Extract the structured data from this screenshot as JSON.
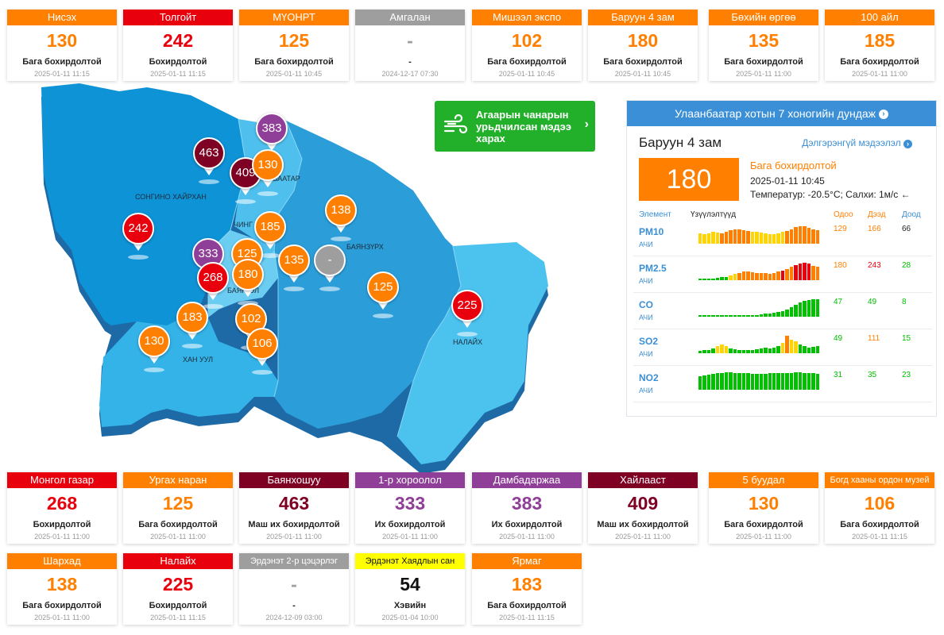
{
  "colors": {
    "good": "#00c000",
    "moderate": "#ffd400",
    "orange": "#ff7f00",
    "red": "#e8000c",
    "purple": "#8f3f97",
    "maroon": "#7e0023",
    "gray": "#9e9e9e",
    "yellow": "#ffff00"
  },
  "top_cards": [
    {
      "name": "Нисэх",
      "value": "130",
      "level": "Бага бохирдолтой",
      "time": "2025-01-11 11:15",
      "color": "#ff7f00"
    },
    {
      "name": "Толгойт",
      "value": "242",
      "level": "Бохирдолтой",
      "time": "2025-01-11 11:15",
      "color": "#e8000c"
    },
    {
      "name": "МҮОНРТ",
      "value": "125",
      "level": "Бага бохирдолтой",
      "time": "2025-01-11 10:45",
      "color": "#ff7f00"
    },
    {
      "name": "Амгалан",
      "value": "-",
      "level": "-",
      "time": "2024-12-17 07:30",
      "color": "#9e9e9e"
    },
    {
      "name": "Мишээл экспо",
      "value": "102",
      "level": "Бага бохирдолтой",
      "time": "2025-01-11 10:45",
      "color": "#ff7f00"
    },
    {
      "name": "Баруун 4 зам",
      "value": "180",
      "level": "Бага бохирдолтой",
      "time": "2025-01-11 10:45",
      "color": "#ff7f00"
    },
    {
      "name": "Бөхийн өргөө",
      "value": "135",
      "level": "Бага бохирдолтой",
      "time": "2025-01-11 11:00",
      "color": "#ff7f00"
    },
    {
      "name": "100 айл",
      "value": "185",
      "level": "Бага бохирдолтой",
      "time": "2025-01-11 11:00",
      "color": "#ff7f00"
    }
  ],
  "bottom_cards_row1": [
    {
      "name": "Монгол газар",
      "value": "268",
      "level": "Бохирдолтой",
      "time": "2025-01-11 11:00",
      "color": "#e8000c"
    },
    {
      "name": "Ургах наран",
      "value": "125",
      "level": "Бага бохирдолтой",
      "time": "2025-01-11 11:00",
      "color": "#ff7f00"
    },
    {
      "name": "Баянхошуу",
      "value": "463",
      "level": "Маш их бохирдолтой",
      "time": "2025-01-11 11:00",
      "color": "#7e0023"
    },
    {
      "name": "1-р хороолол",
      "value": "333",
      "level": "Их бохирдолтой",
      "time": "2025-01-11 11:00",
      "color": "#8f3f97"
    },
    {
      "name": "Дамбадаржаа",
      "value": "383",
      "level": "Их бохирдолтой",
      "time": "2025-01-11 11:00",
      "color": "#8f3f97"
    },
    {
      "name": "Хайлааст",
      "value": "409",
      "level": "Маш их бохирдолтой",
      "time": "2025-01-11 11:00",
      "color": "#7e0023"
    },
    {
      "name": "5 буудал",
      "value": "130",
      "level": "Бага бохирдолтой",
      "time": "2025-01-11 11:00",
      "color": "#ff7f00"
    },
    {
      "name": "Богд хааны ордон музей",
      "value": "106",
      "level": "Бага бохирдолтой",
      "time": "2025-01-11 11:15",
      "color": "#ff7f00"
    }
  ],
  "bottom_cards_row2": [
    {
      "name": "Шархад",
      "value": "138",
      "level": "Бага бохирдолтой",
      "time": "2025-01-11 11:00",
      "color": "#ff7f00"
    },
    {
      "name": "Налайх",
      "value": "225",
      "level": "Бохирдолтой",
      "time": "2025-01-11 11:15",
      "color": "#e8000c"
    },
    {
      "name": "Эрдэнэт 2-р цэцэрлэг",
      "value": "-",
      "level": "-",
      "time": "2024-12-09 03:00",
      "color": "#9e9e9e"
    },
    {
      "name": "Эрдэнэт Хаядлын сан",
      "value": "54",
      "level": "Хэвийн",
      "time": "2025-01-04 10:00",
      "color": "#ffff00"
    },
    {
      "name": "Ярмаг",
      "value": "183",
      "level": "Бага бохирдолтой",
      "time": "2025-01-11 11:15",
      "color": "#ff7f00"
    }
  ],
  "map": {
    "districts": [
      "СОНГИНО ХАЙРХАН",
      "ЧИНГ",
      "СБААТАР",
      "БАЯНЗҮРХ",
      "БАЯН ОЛ",
      "ХАН УУЛ",
      "НАЛАЙХ"
    ],
    "pins": [
      "383",
      "463",
      "409",
      "130",
      "242",
      "185",
      "138",
      "333",
      "125",
      "135",
      "-",
      "268",
      "180",
      "125",
      "225",
      "183",
      "102",
      "130",
      "106"
    ]
  },
  "forecast": {
    "label": "Агаарын чанарын урьдчилсан мэдээ харах"
  },
  "panel": {
    "title": "Улаанбаатар хотын 7 хоногийн дундаж",
    "station": "Баруун 4 зам",
    "details_link": "Дэлгэрэнгүй мэдээлэл",
    "aqi": "180",
    "level": "Бага бохирдолтой",
    "time": "2025-01-11 10:45",
    "weather": "Температур: -20.5°C; Салхи: 1м/с",
    "col_element": "Элемент",
    "col_trend": "Үзүүлэлтүүд",
    "col_now": "Одоо",
    "col_max": "Дээд",
    "col_min": "Доод",
    "rows": [
      {
        "name": "PM10",
        "unit": "АЧИ",
        "now": "129",
        "max": "166",
        "min": "66",
        "now_color": "#ff7f00",
        "max_color": "#ff7f00",
        "min_color": "#222222",
        "bars": [
          55,
          50,
          55,
          60,
          58,
          55,
          60,
          70,
          72,
          74,
          68,
          66,
          62,
          60,
          58,
          55,
          50,
          48,
          52,
          60,
          66,
          72,
          85,
          90,
          88,
          80,
          72,
          70
        ],
        "bar_colors": [
          "#ffd400",
          "#ffd400",
          "#ffd400",
          "#ffd400",
          "#ffd400",
          "#ff7f00",
          "#ff7f00",
          "#ff7f00",
          "#ff7f00",
          "#ff7f00",
          "#ff7f00",
          "#ff7f00",
          "#ffd400",
          "#ffd400",
          "#ffd400",
          "#ffd400",
          "#ffd400",
          "#ffd400",
          "#ffd400",
          "#ffd400",
          "#ff7f00",
          "#ff7f00",
          "#ff7f00",
          "#ff7f00",
          "#ff7f00",
          "#ff7f00",
          "#ff7f00",
          "#ff7f00"
        ]
      },
      {
        "name": "PM2.5",
        "unit": "АЧИ",
        "now": "180",
        "max": "243",
        "min": "28",
        "now_color": "#ff7f00",
        "max_color": "#e8000c",
        "min_color": "#00c000",
        "bars": [
          8,
          8,
          8,
          8,
          10,
          12,
          12,
          20,
          25,
          30,
          35,
          35,
          32,
          30,
          30,
          28,
          26,
          30,
          35,
          40,
          45,
          55,
          62,
          70,
          72,
          68,
          60,
          55
        ],
        "bar_colors": [
          "#00c000",
          "#00c000",
          "#00c000",
          "#00c000",
          "#00c000",
          "#00c000",
          "#00c000",
          "#ffd400",
          "#ffd400",
          "#ff7f00",
          "#ff7f00",
          "#ff7f00",
          "#ff7f00",
          "#ff7f00",
          "#ff7f00",
          "#ff7f00",
          "#ff7f00",
          "#ff7f00",
          "#ff7f00",
          "#e8000c",
          "#ff7f00",
          "#ff7f00",
          "#e8000c",
          "#e8000c",
          "#e8000c",
          "#e8000c",
          "#ff7f00",
          "#ff7f00"
        ]
      },
      {
        "name": "CO",
        "unit": "АЧИ",
        "now": "47",
        "max": "49",
        "min": "8",
        "now_color": "#00c000",
        "max_color": "#00c000",
        "min_color": "#00c000",
        "bars": [
          6,
          6,
          6,
          6,
          6,
          6,
          6,
          6,
          8,
          8,
          8,
          8,
          8,
          8,
          10,
          12,
          14,
          16,
          20,
          24,
          30,
          40,
          50,
          60,
          66,
          70,
          72,
          72
        ],
        "bar_colors": [
          "#00c000"
        ]
      },
      {
        "name": "SO2",
        "unit": "АЧИ",
        "now": "49",
        "max": "111",
        "min": "15",
        "now_color": "#00c000",
        "max_color": "#ff7f00",
        "min_color": "#00c000",
        "bars": [
          10,
          12,
          14,
          20,
          30,
          38,
          30,
          20,
          16,
          14,
          12,
          12,
          14,
          16,
          20,
          24,
          22,
          26,
          30,
          44,
          76,
          60,
          50,
          38,
          30,
          24,
          28,
          30
        ],
        "bar_colors": [
          "#00c000",
          "#00c000",
          "#00c000",
          "#00c000",
          "#ffd400",
          "#ffd400",
          "#ffd400",
          "#00c000",
          "#00c000",
          "#00c000",
          "#00c000",
          "#00c000",
          "#00c000",
          "#00c000",
          "#00c000",
          "#00c000",
          "#00c000",
          "#00c000",
          "#00c000",
          "#ffd400",
          "#ff7f00",
          "#ffd400",
          "#ffd400",
          "#00c000",
          "#00c000",
          "#00c000",
          "#00c000",
          "#00c000"
        ]
      },
      {
        "name": "NO2",
        "unit": "АЧИ",
        "now": "31",
        "max": "35",
        "min": "23",
        "now_color": "#00c000",
        "max_color": "#00c000",
        "min_color": "#00c000",
        "bars": [
          55,
          60,
          62,
          66,
          70,
          70,
          72,
          72,
          70,
          70,
          68,
          68,
          66,
          66,
          64,
          66,
          68,
          70,
          70,
          70,
          70,
          70,
          72,
          72,
          70,
          70,
          68,
          66
        ],
        "bar_colors": [
          "#00c000"
        ]
      }
    ]
  }
}
